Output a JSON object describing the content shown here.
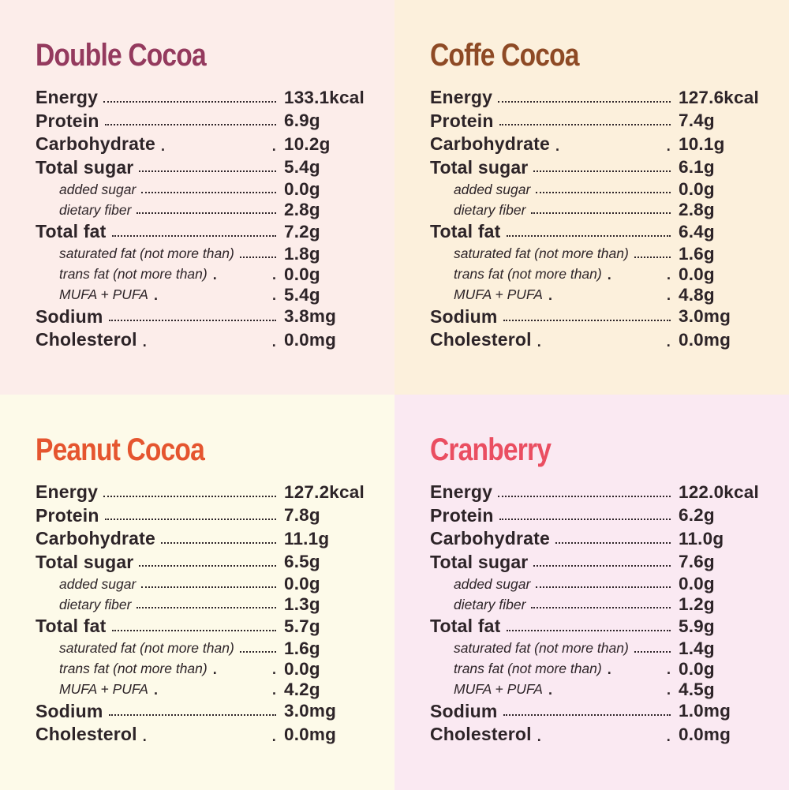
{
  "colors": {
    "text": "#2d2428",
    "leader_dots": "#2d2428"
  },
  "panels": [
    {
      "id": "double-cocoa",
      "title": "Double Cocoa",
      "title_color": "#943a5e",
      "bg_color": "#fcedea",
      "rows": [
        {
          "label": "Energy",
          "value": "133.1kcal",
          "style": "main",
          "leader": "dots"
        },
        {
          "label": "Protein",
          "value": "6.9g",
          "style": "main",
          "leader": "dots"
        },
        {
          "label": "Carbohydrate",
          "value": "10.2g",
          "style": "main",
          "leader": "sparse"
        },
        {
          "label": "Total sugar",
          "value": "5.4g",
          "style": "main",
          "leader": "dots"
        },
        {
          "label": "added sugar",
          "value": "0.0g",
          "style": "sub",
          "leader": "dots"
        },
        {
          "label": "dietary fiber",
          "value": "2.8g",
          "style": "sub",
          "leader": "dots"
        },
        {
          "label": "Total fat",
          "value": "7.2g",
          "style": "main",
          "leader": "dots"
        },
        {
          "label": "saturated fat (not more than)",
          "value": "1.8g",
          "style": "sub",
          "leader": "dots"
        },
        {
          "label": "trans fat (not more than)",
          "value": "0.0g",
          "style": "sub",
          "leader": "sparse"
        },
        {
          "label": "MUFA + PUFA",
          "value": "5.4g",
          "style": "sub",
          "leader": "sparse"
        },
        {
          "label": "Sodium",
          "value": "3.8mg",
          "style": "main",
          "leader": "dots"
        },
        {
          "label": "Cholesterol",
          "value": "0.0mg",
          "style": "main",
          "leader": "sparse"
        }
      ]
    },
    {
      "id": "coffe-cocoa",
      "title": "Coffe Cocoa",
      "title_color": "#8e4a25",
      "bg_color": "#fcf0dc",
      "rows": [
        {
          "label": "Energy",
          "value": "127.6kcal",
          "style": "main",
          "leader": "dots"
        },
        {
          "label": "Protein",
          "value": "7.4g",
          "style": "main",
          "leader": "dots"
        },
        {
          "label": "Carbohydrate",
          "value": "10.1g",
          "style": "main",
          "leader": "sparse"
        },
        {
          "label": "Total sugar",
          "value": "6.1g",
          "style": "main",
          "leader": "dots"
        },
        {
          "label": "added sugar",
          "value": "0.0g",
          "style": "sub",
          "leader": "dots"
        },
        {
          "label": "dietary fiber",
          "value": "2.8g",
          "style": "sub",
          "leader": "dots"
        },
        {
          "label": "Total fat",
          "value": "6.4g",
          "style": "main",
          "leader": "dots"
        },
        {
          "label": "saturated fat (not more than)",
          "value": "1.6g",
          "style": "sub",
          "leader": "dots"
        },
        {
          "label": "trans fat (not more than)",
          "value": "0.0g",
          "style": "sub",
          "leader": "sparse"
        },
        {
          "label": "MUFA + PUFA",
          "value": "4.8g",
          "style": "sub",
          "leader": "sparse"
        },
        {
          "label": "Sodium",
          "value": "3.0mg",
          "style": "main",
          "leader": "dots"
        },
        {
          "label": "Cholesterol",
          "value": "0.0mg",
          "style": "main",
          "leader": "sparse"
        }
      ]
    },
    {
      "id": "peanut-cocoa",
      "title": "Peanut Cocoa",
      "title_color": "#e5552f",
      "bg_color": "#fdfae9",
      "rows": [
        {
          "label": "Energy",
          "value": "127.2kcal",
          "style": "main",
          "leader": "dots"
        },
        {
          "label": "Protein",
          "value": "7.8g",
          "style": "main",
          "leader": "dots"
        },
        {
          "label": "Carbohydrate",
          "value": "11.1g",
          "style": "main",
          "leader": "dots"
        },
        {
          "label": "Total sugar",
          "value": "6.5g",
          "style": "main",
          "leader": "dots"
        },
        {
          "label": "added sugar",
          "value": "0.0g",
          "style": "sub",
          "leader": "dots"
        },
        {
          "label": "dietary fiber",
          "value": "1.3g",
          "style": "sub",
          "leader": "dots"
        },
        {
          "label": "Total fat",
          "value": "5.7g",
          "style": "main",
          "leader": "dots"
        },
        {
          "label": "saturated fat (not more than)",
          "value": "1.6g",
          "style": "sub",
          "leader": "dots"
        },
        {
          "label": "trans fat (not more than)",
          "value": "0.0g",
          "style": "sub",
          "leader": "sparse"
        },
        {
          "label": "MUFA + PUFA",
          "value": "4.2g",
          "style": "sub",
          "leader": "sparse"
        },
        {
          "label": "Sodium",
          "value": "3.0mg",
          "style": "main",
          "leader": "dots"
        },
        {
          "label": "Cholesterol",
          "value": "0.0mg",
          "style": "main",
          "leader": "sparse"
        }
      ]
    },
    {
      "id": "cranberry",
      "title": "Cranberry",
      "title_color": "#ea4e61",
      "bg_color": "#fae9f2",
      "rows": [
        {
          "label": "Energy",
          "value": "122.0kcal",
          "style": "main",
          "leader": "dots"
        },
        {
          "label": "Protein",
          "value": "6.2g",
          "style": "main",
          "leader": "dots"
        },
        {
          "label": "Carbohydrate",
          "value": "11.0g",
          "style": "main",
          "leader": "dots"
        },
        {
          "label": "Total sugar",
          "value": "7.6g",
          "style": "main",
          "leader": "dots"
        },
        {
          "label": "added sugar",
          "value": "0.0g",
          "style": "sub",
          "leader": "dots"
        },
        {
          "label": "dietary fiber",
          "value": "1.2g",
          "style": "sub",
          "leader": "dots"
        },
        {
          "label": "Total fat",
          "value": "5.9g",
          "style": "main",
          "leader": "dots"
        },
        {
          "label": "saturated fat (not more than)",
          "value": "1.4g",
          "style": "sub",
          "leader": "dots"
        },
        {
          "label": "trans fat (not more than)",
          "value": "0.0g",
          "style": "sub",
          "leader": "sparse"
        },
        {
          "label": "MUFA + PUFA",
          "value": "4.5g",
          "style": "sub",
          "leader": "sparse"
        },
        {
          "label": "Sodium",
          "value": "1.0mg",
          "style": "main",
          "leader": "dots"
        },
        {
          "label": "Cholesterol",
          "value": "0.0mg",
          "style": "main",
          "leader": "sparse"
        }
      ]
    }
  ]
}
